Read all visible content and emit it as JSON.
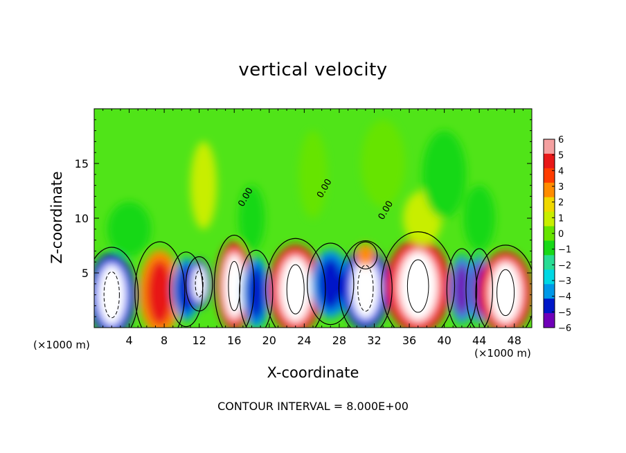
{
  "chart_data": {
    "type": "heatmap",
    "title": "vertical velocity",
    "xlabel": "X-coordinate",
    "ylabel": "Z-coordinate",
    "x_unit": "(×1000 m)",
    "x_unit_right": "(×1000 m)",
    "xlim": [
      0,
      50
    ],
    "ylim": [
      0,
      20
    ],
    "x_ticks": [
      "4",
      "8",
      "12",
      "16",
      "20",
      "24",
      "28",
      "32",
      "36",
      "40",
      "44",
      "48"
    ],
    "y_ticks": [
      "5",
      "10",
      "15"
    ],
    "colorbar_ticks": [
      "6",
      "5",
      "4",
      "3",
      "2",
      "1",
      "0",
      "−1",
      "−2",
      "−3",
      "−4",
      "−5",
      "−6"
    ],
    "colorbar_colors": [
      "#f4a0a0",
      "#e81818",
      "#ff3c00",
      "#ff8c00",
      "#f0d800",
      "#c8ee00",
      "#66e400",
      "#18d818",
      "#28dc94",
      "#00d8e4",
      "#0098e8",
      "#0018c8",
      "#7000b8"
    ],
    "contour_label": "0.00",
    "contour_interval_text": "CONTOUR INTERVAL = 8.000E+00",
    "cells": [
      {
        "x": 2,
        "z": 3,
        "w": 1.6,
        "h": 2.8,
        "v": -8
      },
      {
        "x": 7.5,
        "z": 3.2,
        "w": 1.5,
        "h": 3.0,
        "v": 5
      },
      {
        "x": 10.5,
        "z": 3.5,
        "w": 1.0,
        "h": 2.2,
        "v": -5
      },
      {
        "x": 12,
        "z": 4,
        "w": 0.8,
        "h": 1.6,
        "v": -9
      },
      {
        "x": 16,
        "z": 3.8,
        "w": 1.2,
        "h": 3.0,
        "v": 9
      },
      {
        "x": 18.5,
        "z": 3.2,
        "w": 1.0,
        "h": 2.5,
        "v": -5
      },
      {
        "x": 23,
        "z": 3.5,
        "w": 1.8,
        "h": 3.0,
        "v": 9
      },
      {
        "x": 27,
        "z": 4,
        "w": 1.4,
        "h": 2.4,
        "v": -5
      },
      {
        "x": 31,
        "z": 3.6,
        "w": 1.6,
        "h": 2.8,
        "v": -9
      },
      {
        "x": 31,
        "z": 6.6,
        "w": 0.7,
        "h": 0.8,
        "v": 3
      },
      {
        "x": 37,
        "z": 3.8,
        "w": 2.2,
        "h": 3.2,
        "v": 9
      },
      {
        "x": 42,
        "z": 3.5,
        "w": 0.9,
        "h": 2.4,
        "v": -6
      },
      {
        "x": 44,
        "z": 3.5,
        "w": 0.8,
        "h": 2.4,
        "v": -6
      },
      {
        "x": 47,
        "z": 3.2,
        "w": 1.8,
        "h": 2.8,
        "v": 9
      },
      {
        "x": 12.5,
        "z": 13,
        "w": 1.5,
        "h": 4,
        "v": 0.6
      },
      {
        "x": 25,
        "z": 14,
        "w": 1.6,
        "h": 4,
        "v": 0.5
      },
      {
        "x": 37.5,
        "z": 10,
        "w": 2.2,
        "h": 2.5,
        "v": 0.9
      },
      {
        "x": 33,
        "z": 15,
        "w": 2.5,
        "h": 4,
        "v": 0.4
      },
      {
        "x": 18,
        "z": 10,
        "w": 1.5,
        "h": 3,
        "v": -1.2
      },
      {
        "x": 4,
        "z": 9,
        "w": 2.5,
        "h": 2.5,
        "v": -0.7
      },
      {
        "x": 40,
        "z": 14,
        "w": 2.5,
        "h": 4,
        "v": -0.6
      },
      {
        "x": 44,
        "z": 10,
        "w": 1.8,
        "h": 3,
        "v": -0.8
      }
    ]
  }
}
